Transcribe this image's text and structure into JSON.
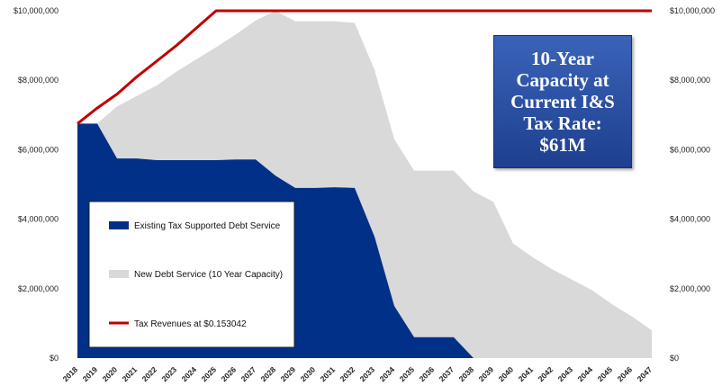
{
  "chart_data": {
    "type": "area",
    "x": [
      "2018",
      "2019",
      "2020",
      "2021",
      "2022",
      "2023",
      "2024",
      "2025",
      "2026",
      "2027",
      "2028",
      "2029",
      "2030",
      "2031",
      "2032",
      "2033",
      "2034",
      "2035",
      "2036",
      "2037",
      "2038",
      "2039",
      "2040",
      "2041",
      "2042",
      "2043",
      "2044",
      "2045",
      "2046",
      "2047"
    ],
    "series": [
      {
        "name": "Existing Tax Supported Debt Service",
        "kind": "area",
        "color": "#003087",
        "values": [
          6750000,
          6750000,
          5750000,
          5750000,
          5700000,
          5700000,
          5700000,
          5700000,
          5720000,
          5720000,
          5250000,
          4900000,
          4900000,
          4920000,
          4900000,
          3500000,
          1500000,
          600000,
          600000,
          600000,
          0,
          0,
          0,
          0,
          0,
          0,
          0,
          0,
          0,
          0
        ]
      },
      {
        "name": "New Debt Service (10 Year Capacity)",
        "kind": "area",
        "color": "#d9d9d9",
        "values": [
          0,
          0,
          1500000,
          1800000,
          2150000,
          2550000,
          2900000,
          3250000,
          3600000,
          4000000,
          4750000,
          4800000,
          4800000,
          4780000,
          4750000,
          4800000,
          4800000,
          4800000,
          4800000,
          4800000,
          4800000,
          4500000,
          3300000,
          2900000,
          2550000,
          2250000,
          1950000,
          1550000,
          1200000,
          800000
        ]
      },
      {
        "name": "Tax Revenues at $0.153042",
        "kind": "line",
        "color": "#c00000",
        "values": [
          6750000,
          7200000,
          7600000,
          8100000,
          8550000,
          9000000,
          9500000,
          10000000,
          10000000,
          10000000,
          10000000,
          10000000,
          10000000,
          10000000,
          10000000,
          10000000,
          10000000,
          10000000,
          10000000,
          10000000,
          10000000,
          10000000,
          10000000,
          10000000,
          10000000,
          10000000,
          10000000,
          10000000,
          10000000,
          10000000
        ]
      }
    ],
    "ylim": [
      0,
      10000000
    ],
    "y_ticks": [
      "$0",
      "$2,000,000",
      "$4,000,000",
      "$6,000,000",
      "$8,000,000",
      "$10,000,000"
    ],
    "secondary_y_ticks": [
      "$0",
      "$2,000,000",
      "$4,000,000",
      "$6,000,000",
      "$8,000,000",
      "$10,000,000"
    ],
    "grid": false,
    "legend_placement": "lower-left"
  },
  "legend": {
    "items": [
      {
        "label": "Existing Tax Supported Debt Service"
      },
      {
        "label": "New Debt Service (10 Year Capacity)"
      },
      {
        "label": "Tax Revenues at $0.153042"
      }
    ]
  },
  "callout": {
    "lines": [
      "10-Year",
      "Capacity at",
      "Current I&S",
      "Tax Rate:",
      "$61M"
    ]
  }
}
